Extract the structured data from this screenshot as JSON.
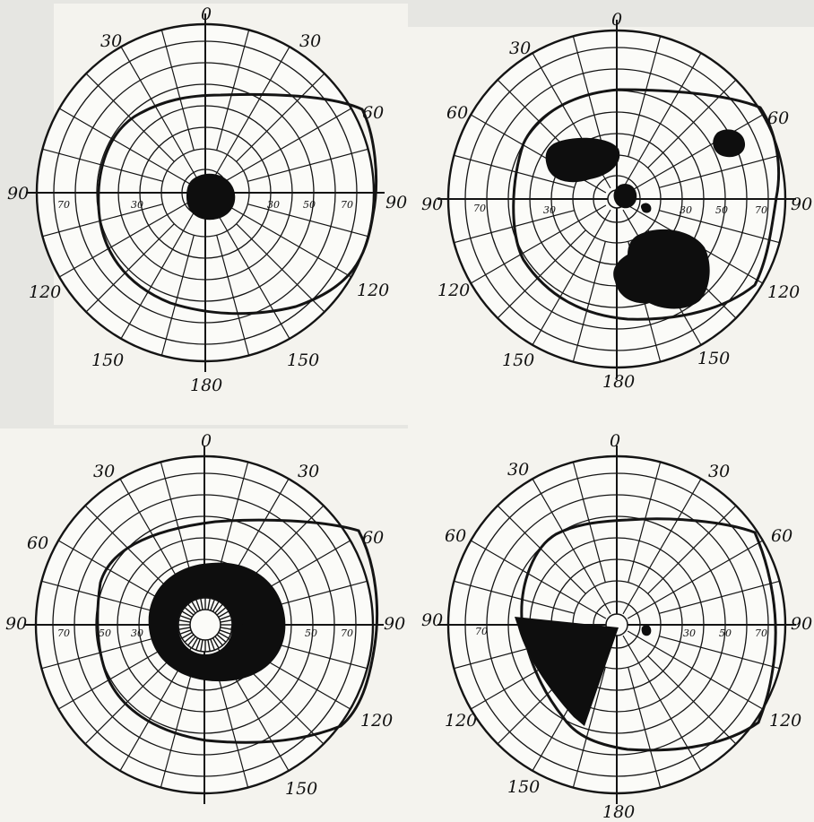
{
  "colors": {
    "paper": "#f4f3ee",
    "background": "#e6e6e2",
    "ink": "#141414",
    "scotoma": "#0e0e0e"
  },
  "panels": [
    {
      "id": "top-left",
      "angle_labels": [
        "0",
        "30",
        "30",
        "60",
        "90",
        "90",
        "120",
        "120",
        "150",
        "150",
        "180"
      ],
      "radius_labels": [
        "70",
        "30",
        "30",
        "50",
        "70"
      ],
      "scotomas": [
        "central"
      ]
    },
    {
      "id": "top-right",
      "angle_labels": [
        "0",
        "30",
        "60",
        "60",
        "90",
        "90",
        "120",
        "120",
        "150",
        "150",
        "180"
      ],
      "radius_labels": [
        "70",
        "30",
        "30",
        "50",
        "70"
      ],
      "scotomas": [
        "scattered"
      ]
    },
    {
      "id": "bottom-left",
      "angle_labels": [
        "0",
        "30",
        "30",
        "60",
        "60",
        "90",
        "90",
        "120",
        "150"
      ],
      "radius_labels": [
        "70",
        "50",
        "30",
        "50",
        "70"
      ],
      "scotomas": [
        "ring"
      ]
    },
    {
      "id": "bottom-right",
      "angle_labels": [
        "0",
        "30",
        "30",
        "60",
        "60",
        "90",
        "90",
        "120",
        "120",
        "150",
        "180"
      ],
      "radius_labels": [
        "70",
        "30",
        "50",
        "70"
      ],
      "scotomas": [
        "sector"
      ]
    }
  ]
}
